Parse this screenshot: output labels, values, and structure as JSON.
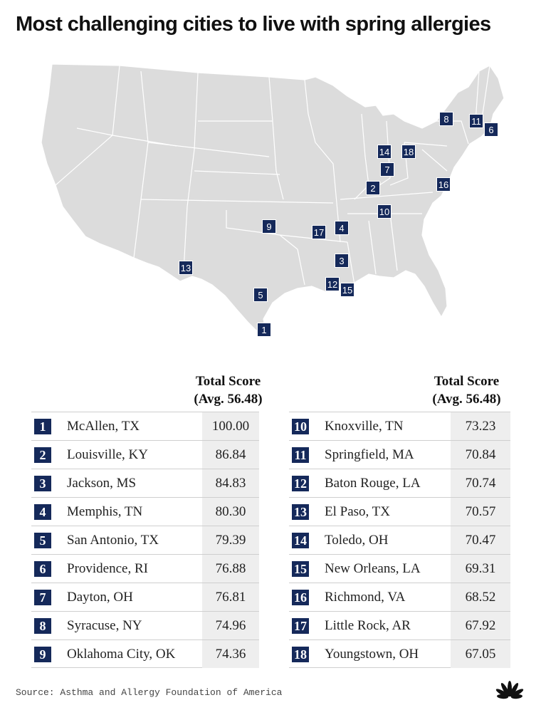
{
  "title": "Most challenging cities to live with spring allergies",
  "column_header_line1": "Total Score",
  "column_header_line2": "(Avg. 56.48)",
  "source": "Source: Asthma and Allergy Foundation of America",
  "logo": "peacock-logo-icon",
  "colors": {
    "marker": "#15295a",
    "land": "#dcdcdc",
    "border": "#ffffff",
    "score_bg": "#eeeeee"
  },
  "cities": [
    {
      "rank": "1",
      "name": "McAllen, TX",
      "score": "100.00"
    },
    {
      "rank": "2",
      "name": "Louisville, KY",
      "score": "86.84"
    },
    {
      "rank": "3",
      "name": "Jackson, MS",
      "score": "84.83"
    },
    {
      "rank": "4",
      "name": "Memphis, TN",
      "score": "80.30"
    },
    {
      "rank": "5",
      "name": "San Antonio, TX",
      "score": "79.39"
    },
    {
      "rank": "6",
      "name": "Providence, RI",
      "score": "76.88"
    },
    {
      "rank": "7",
      "name": "Dayton, OH",
      "score": "76.81"
    },
    {
      "rank": "8",
      "name": "Syracuse, NY",
      "score": "74.96"
    },
    {
      "rank": "9",
      "name": "Oklahoma City, OK",
      "score": "74.36"
    },
    {
      "rank": "10",
      "name": "Knoxville, TN",
      "score": "73.23"
    },
    {
      "rank": "11",
      "name": "Springfield, MA",
      "score": "70.84"
    },
    {
      "rank": "12",
      "name": "Baton Rouge, LA",
      "score": "70.74"
    },
    {
      "rank": "13",
      "name": "El Paso, TX",
      "score": "70.57"
    },
    {
      "rank": "14",
      "name": "Toledo, OH",
      "score": "70.47"
    },
    {
      "rank": "15",
      "name": "New Orleans, LA",
      "score": "69.31"
    },
    {
      "rank": "16",
      "name": "Richmond, VA",
      "score": "68.52"
    },
    {
      "rank": "17",
      "name": "Little Rock, AR",
      "score": "67.92"
    },
    {
      "rank": "18",
      "name": "Youngstown, OH",
      "score": "67.05"
    }
  ]
}
